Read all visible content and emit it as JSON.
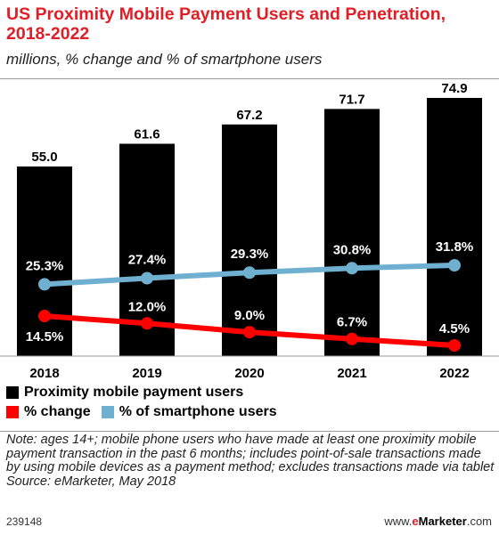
{
  "header": {
    "title": "US Proximity Mobile Payment Users and Penetration, 2018-2022",
    "subtitle": "millions, % change and % of smartphone users"
  },
  "chart_data": {
    "type": "bar",
    "categories": [
      "2018",
      "2019",
      "2020",
      "2021",
      "2022"
    ],
    "series": [
      {
        "name": "Proximity mobile payment users",
        "type": "bar",
        "values": [
          55.0,
          61.6,
          67.2,
          71.7,
          74.9
        ],
        "labels": [
          "55.0",
          "61.6",
          "67.2",
          "71.7",
          "74.9"
        ],
        "color": "#000000"
      },
      {
        "name": "% change",
        "type": "line",
        "values": [
          14.5,
          12.0,
          9.0,
          6.7,
          4.5
        ],
        "labels": [
          "14.5%",
          "12.0%",
          "9.0%",
          "6.7%",
          "4.5%"
        ],
        "color": "#ff0000"
      },
      {
        "name": "% of smartphone users",
        "type": "line",
        "values": [
          25.3,
          27.4,
          29.3,
          30.8,
          31.8
        ],
        "labels": [
          "25.3%",
          "27.4%",
          "29.3%",
          "30.8%",
          "31.8%"
        ],
        "color": "#6fb0d0"
      }
    ],
    "legend_placement": "bottom",
    "grid": false
  },
  "legend": {
    "items": [
      "Proximity mobile payment users",
      "% change",
      "% of smartphone users"
    ]
  },
  "note": {
    "text": "Note: ages 14+; mobile phone users who have made at least one proximity mobile payment transaction in the past 6 months; includes point-of-sale transactions made by using mobile devices as a payment method; excludes transactions made via tablet",
    "source": "Source: eMarketer, May 2018"
  },
  "footer": {
    "chart_id": "239148",
    "brand_prefix": "www.",
    "brand_e": "e",
    "brand_name": "Marketer",
    "brand_suffix": ".com"
  }
}
